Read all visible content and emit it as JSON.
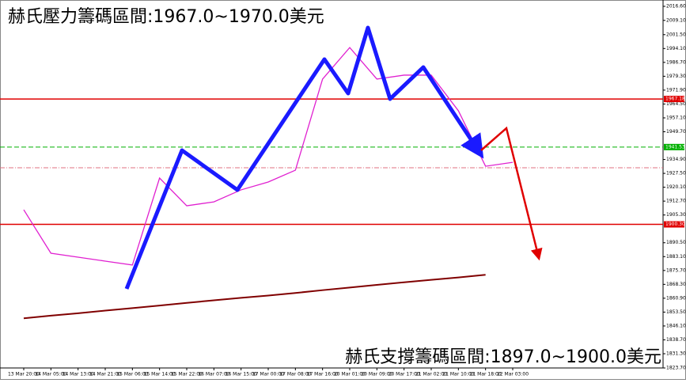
{
  "chart_data": {
    "type": "line",
    "title": "赫氏壓力籌碼區間:1967.0~1970.0美元",
    "annotation": "赫氏支撐籌碼區間:1897.0~1900.0美元",
    "categories": [
      "13 Mar 20:00",
      "14 Mar 05:00",
      "14 Mar 13:00",
      "14 Mar 21:00",
      "15 Mar 06:00",
      "15 Mar 14:00",
      "15 Mar 22:00",
      "16 Mar 07:00",
      "16 Mar 15:00",
      "17 Mar 00:00",
      "17 Mar 08:00",
      "17 Mar 16:00",
      "20 Mar 01:00",
      "20 Mar 09:00",
      "20 Mar 17:00",
      "21 Mar 02:00",
      "21 Mar 10:00",
      "21 Mar 18:00",
      "22 Mar 03:00"
    ],
    "series": [
      {
        "color": "#e020d0",
        "values": [
          1908.1,
          1884.9,
          1882.8,
          1880.7,
          1878.6,
          1925.0,
          1910.2,
          1912.3,
          1918.7,
          1922.9,
          1929.2,
          1977.8,
          1994.6,
          1977.8,
          1979.9,
          1979.9,
          1960.9,
          1931.3,
          1933.4
        ]
      },
      {
        "color": "#800000",
        "values": [
          1850.2,
          1851.6,
          1852.9,
          1854.3,
          1855.6,
          1857.0,
          1858.4,
          1859.8,
          1861.1,
          1862.3,
          1863.7,
          1865.2,
          1866.6,
          1868.0,
          1869.4,
          1870.7,
          1872.0,
          1873.4,
          null
        ]
      }
    ],
    "levels": [
      {
        "value": 1967.18,
        "color": "#e00000",
        "style": "solid"
      },
      {
        "value": 1941.53,
        "color": "#00b000",
        "style": "dash"
      },
      {
        "value": 1930.5,
        "color": "#e07080",
        "style": "dashdot"
      },
      {
        "value": 1900.3,
        "label": "1900.30",
        "color": "#e00000",
        "style": "solid"
      }
    ],
    "ylim": [
      1823.7,
      2016.6
    ],
    "yticks": [
      {
        "value": 2016.6,
        "label": "2016.60"
      },
      {
        "value": 2009.1,
        "label": "2009.10"
      },
      {
        "value": 2001.5,
        "label": "2001.50"
      },
      {
        "value": 1994.1,
        "label": "1994.10"
      },
      {
        "value": 1986.7,
        "label": "1986.70"
      },
      {
        "value": 1979.3,
        "label": "1979.30"
      },
      {
        "value": 1971.9,
        "label": "1971.90"
      },
      {
        "value": 1964.5,
        "label": "1964.50"
      },
      {
        "value": 1957.1,
        "label": "1957.10"
      },
      {
        "value": 1949.7,
        "label": "1949.70"
      },
      {
        "value": 1934.9,
        "label": "1934.90"
      },
      {
        "value": 1927.5,
        "label": "1927.50"
      },
      {
        "value": 1920.1,
        "label": "1920.10"
      },
      {
        "value": 1912.7,
        "label": "1912.70"
      },
      {
        "value": 1905.3,
        "label": "1905.30"
      },
      {
        "value": 1890.5,
        "label": "1890.50"
      },
      {
        "value": 1883.1,
        "label": "1883.10"
      },
      {
        "value": 1875.7,
        "label": "1875.70"
      },
      {
        "value": 1868.3,
        "label": "1868.30"
      },
      {
        "value": 1860.9,
        "label": "1860.90"
      },
      {
        "value": 1853.5,
        "label": "1853.50"
      },
      {
        "value": 1846.1,
        "label": "1846.10"
      },
      {
        "value": 1838.7,
        "label": "1838.70"
      },
      {
        "value": 1831.3,
        "label": "1831.30"
      },
      {
        "value": 1823.7,
        "label": "1823.70"
      }
    ]
  }
}
